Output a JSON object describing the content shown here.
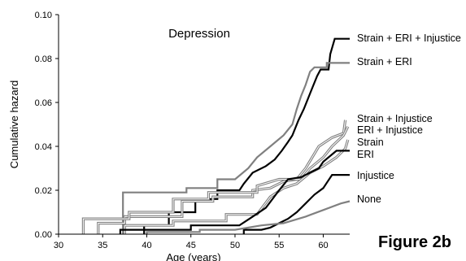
{
  "chart_data": {
    "type": "line",
    "title": "Depression",
    "figure_label": "Figure 2b",
    "xlabel": "Age (years)",
    "ylabel": "Cumulative hazard",
    "xlim": [
      30,
      63
    ],
    "ylim": [
      0,
      0.1
    ],
    "x_ticks": [
      "30",
      "35",
      "40",
      "45",
      "50",
      "55",
      "60"
    ],
    "y_ticks": [
      "0.00",
      "0.02",
      "0.04",
      "0.06",
      "0.08",
      "0.10"
    ],
    "grid": false,
    "legend": "labels at right end of lines",
    "series": [
      {
        "name": "Strain + ERI + Injustice",
        "color": "#000000",
        "style": "solid",
        "points": [
          [
            39.7,
            0.0
          ],
          [
            39.7,
            0.004
          ],
          [
            42.5,
            0.004
          ],
          [
            42.5,
            0.01
          ],
          [
            45.5,
            0.01
          ],
          [
            45.5,
            0.016
          ],
          [
            48.0,
            0.016
          ],
          [
            48.0,
            0.02
          ],
          [
            50.5,
            0.02
          ],
          [
            51.0,
            0.023
          ],
          [
            52.0,
            0.028
          ],
          [
            53.5,
            0.031
          ],
          [
            54.5,
            0.034
          ],
          [
            55.3,
            0.038
          ],
          [
            56.0,
            0.042
          ],
          [
            56.5,
            0.045
          ],
          [
            57.2,
            0.052
          ],
          [
            57.8,
            0.057
          ],
          [
            58.3,
            0.062
          ],
          [
            58.8,
            0.067
          ],
          [
            59.3,
            0.072
          ],
          [
            59.7,
            0.075
          ],
          [
            60.6,
            0.075
          ],
          [
            60.8,
            0.082
          ],
          [
            61.3,
            0.089
          ],
          [
            63.0,
            0.089
          ]
        ]
      },
      {
        "name": "Strain + ERI",
        "color": "#808080",
        "style": "solid",
        "points": [
          [
            37.3,
            0.0
          ],
          [
            37.3,
            0.019
          ],
          [
            44.5,
            0.019
          ],
          [
            44.5,
            0.021
          ],
          [
            48.0,
            0.021
          ],
          [
            48.0,
            0.025
          ],
          [
            50.0,
            0.025
          ],
          [
            51.5,
            0.03
          ],
          [
            52.5,
            0.035
          ],
          [
            54.0,
            0.04
          ],
          [
            55.5,
            0.045
          ],
          [
            56.5,
            0.05
          ],
          [
            57.0,
            0.057
          ],
          [
            57.5,
            0.063
          ],
          [
            58.0,
            0.068
          ],
          [
            58.5,
            0.074
          ],
          [
            59.0,
            0.076
          ],
          [
            60.4,
            0.076
          ],
          [
            60.4,
            0.078
          ],
          [
            63.0,
            0.078
          ]
        ]
      },
      {
        "name": "Strain + Injustice",
        "color": "#808080",
        "style": "double",
        "points": [
          [
            34.5,
            0.0
          ],
          [
            34.5,
            0.005
          ],
          [
            37.5,
            0.005
          ],
          [
            37.5,
            0.008
          ],
          [
            44.0,
            0.008
          ],
          [
            44.0,
            0.015
          ],
          [
            47.5,
            0.015
          ],
          [
            47.5,
            0.017
          ],
          [
            52.0,
            0.017
          ],
          [
            52.0,
            0.02
          ],
          [
            54.0,
            0.021
          ],
          [
            55.5,
            0.024
          ],
          [
            57.0,
            0.025
          ],
          [
            58.0,
            0.03
          ],
          [
            59.5,
            0.04
          ],
          [
            61.0,
            0.044
          ],
          [
            62.3,
            0.046
          ],
          [
            62.5,
            0.052
          ]
        ]
      },
      {
        "name": "ERI + Injustice",
        "color": "#808080",
        "style": "double",
        "points": [
          [
            32.8,
            0.0
          ],
          [
            32.8,
            0.007
          ],
          [
            38.0,
            0.007
          ],
          [
            38.0,
            0.01
          ],
          [
            43.0,
            0.01
          ],
          [
            43.0,
            0.016
          ],
          [
            47.0,
            0.016
          ],
          [
            47.0,
            0.019
          ],
          [
            52.5,
            0.019
          ],
          [
            52.5,
            0.022
          ],
          [
            55.0,
            0.025
          ],
          [
            57.5,
            0.025
          ],
          [
            58.5,
            0.03
          ],
          [
            60.0,
            0.035
          ],
          [
            61.0,
            0.04
          ],
          [
            62.3,
            0.045
          ],
          [
            62.8,
            0.049
          ]
        ]
      },
      {
        "name": "Strain",
        "color": "#808080",
        "style": "double",
        "points": [
          [
            37.5,
            0.0
          ],
          [
            37.5,
            0.004
          ],
          [
            43.0,
            0.004
          ],
          [
            43.0,
            0.006
          ],
          [
            49.0,
            0.006
          ],
          [
            49.0,
            0.009
          ],
          [
            52.5,
            0.009
          ],
          [
            54.0,
            0.017
          ],
          [
            55.5,
            0.021
          ],
          [
            57.0,
            0.023
          ],
          [
            58.5,
            0.028
          ],
          [
            60.0,
            0.031
          ],
          [
            61.5,
            0.035
          ],
          [
            62.5,
            0.039
          ],
          [
            62.8,
            0.043
          ]
        ]
      },
      {
        "name": "ERI",
        "color": "#000000",
        "style": "solid",
        "points": [
          [
            37.0,
            0.0
          ],
          [
            37.0,
            0.002
          ],
          [
            45.0,
            0.002
          ],
          [
            45.0,
            0.004
          ],
          [
            50.5,
            0.004
          ],
          [
            52.0,
            0.008
          ],
          [
            53.5,
            0.012
          ],
          [
            55.0,
            0.02
          ],
          [
            56.0,
            0.025
          ],
          [
            57.5,
            0.026
          ],
          [
            58.5,
            0.028
          ],
          [
            59.5,
            0.03
          ],
          [
            60.0,
            0.033
          ],
          [
            61.5,
            0.038
          ],
          [
            63.0,
            0.038
          ]
        ]
      },
      {
        "name": "Injustice",
        "color": "#000000",
        "style": "solid",
        "points": [
          [
            51.0,
            0.0
          ],
          [
            51.0,
            0.002
          ],
          [
            53.0,
            0.002
          ],
          [
            54.0,
            0.003
          ],
          [
            55.0,
            0.005
          ],
          [
            56.0,
            0.007
          ],
          [
            57.0,
            0.01
          ],
          [
            58.0,
            0.014
          ],
          [
            59.0,
            0.018
          ],
          [
            60.0,
            0.021
          ],
          [
            60.5,
            0.024
          ],
          [
            61.0,
            0.027
          ],
          [
            63.0,
            0.027
          ]
        ]
      },
      {
        "name": "None",
        "color": "#808080",
        "style": "solid",
        "points": [
          [
            40.0,
            0.0
          ],
          [
            40.0,
            0.001
          ],
          [
            46.0,
            0.001
          ],
          [
            46.0,
            0.002
          ],
          [
            50.0,
            0.002
          ],
          [
            53.0,
            0.004
          ],
          [
            55.5,
            0.005
          ],
          [
            58.0,
            0.008
          ],
          [
            60.0,
            0.011
          ],
          [
            62.0,
            0.014
          ],
          [
            63.0,
            0.015
          ]
        ]
      }
    ],
    "labels": [
      {
        "text": "Strain + ERI + Injustice"
      },
      {
        "text": "Strain + ERI"
      },
      {
        "text": "Strain + Injustice"
      },
      {
        "text": "ERI + Injustice"
      },
      {
        "text": "Strain"
      },
      {
        "text": "ERI"
      },
      {
        "text": "Injustice"
      },
      {
        "text": "None"
      }
    ]
  }
}
